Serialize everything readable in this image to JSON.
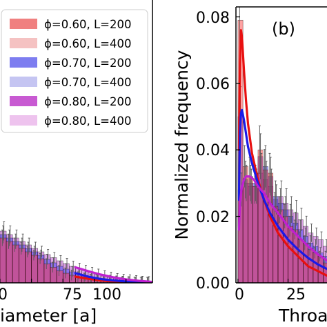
{
  "chart_data": [
    {
      "type": "bar",
      "panel": "left",
      "xlabel": "Pore diameter [a]",
      "xlabel_visible": "iameter [a]",
      "ylabel": "",
      "xlim": [
        -12,
        121
      ],
      "ylim": [
        0,
        0.08
      ],
      "xticks": [
        0,
        25,
        50,
        75,
        100
      ],
      "xticklabels_visible": [
        "0",
        "75",
        "100"
      ],
      "legend": {
        "placement": "upper-left",
        "entries": [
          {
            "label": "ϕ=0.60, L=200",
            "color": "#f08080"
          },
          {
            "label": "ϕ=0.60, L=400",
            "color": "#f5c2c2"
          },
          {
            "label": "ϕ=0.70, L=200",
            "color": "#7d7df0"
          },
          {
            "label": "ϕ=0.70, L=400",
            "color": "#c5c5f2"
          },
          {
            "label": "ϕ=0.80, L=200",
            "color": "#c85ad2"
          },
          {
            "label": "ϕ=0.80, L=400",
            "color": "#eec3ee"
          }
        ]
      },
      "bins_x": [
        2.5,
        7.5,
        12.5,
        17.5,
        22.5,
        27.5,
        32.5,
        37.5,
        42.5,
        47.5,
        52.5,
        57.5,
        62.5,
        67.5,
        72.5,
        77.5,
        82.5,
        87.5,
        92.5,
        97.5,
        102.5,
        107.5,
        112.5,
        117.5
      ],
      "series": [
        {
          "name": "ϕ=0.60, L=200",
          "color": "#ff3030",
          "values": [
            0.013,
            0.012,
            0.011,
            0.01,
            0.009,
            0.008,
            0.007,
            0.0055,
            0.0045,
            0.0035,
            0.0028,
            0.0022,
            0.0017,
            0.0013,
            0.001,
            0.0008,
            0.0006,
            0.0004,
            0.0003,
            0.0002,
            0.0002,
            0.0001,
            0.0001,
            0.0001
          ]
        },
        {
          "name": "ϕ=0.70, L=200",
          "color": "#3030ff",
          "values": [
            0.014,
            0.013,
            0.012,
            0.011,
            0.01,
            0.009,
            0.008,
            0.0068,
            0.0058,
            0.0048,
            0.004,
            0.0032,
            0.0026,
            0.002,
            0.0016,
            0.0012,
            0.0009,
            0.0007,
            0.0005,
            0.0004,
            0.0003,
            0.0002,
            0.0002,
            0.0001
          ]
        },
        {
          "name": "ϕ=0.80, L=200",
          "color": "#b030c8",
          "values": [
            0.015,
            0.014,
            0.013,
            0.012,
            0.011,
            0.01,
            0.009,
            0.0082,
            0.0073,
            0.0064,
            0.0056,
            0.0048,
            0.0042,
            0.0036,
            0.003,
            0.0025,
            0.002,
            0.0016,
            0.0012,
            0.001,
            0.0008,
            0.0006,
            0.0004,
            0.0003
          ]
        }
      ],
      "fit_lines": [
        {
          "series": "ϕ=0.60, L=200",
          "color": "#e81010",
          "x": [
            60,
            70,
            80,
            90,
            100,
            110,
            120
          ],
          "y": [
            0.0018,
            0.0012,
            0.0007,
            0.0004,
            0.0002,
            0.0001,
            5e-05
          ]
        },
        {
          "series": "ϕ=0.70, L=200",
          "color": "#1a1ae8",
          "x": [
            60,
            70,
            80,
            90,
            100,
            110,
            120
          ],
          "y": [
            0.0028,
            0.0018,
            0.0011,
            0.0007,
            0.0004,
            0.0002,
            0.0001
          ]
        },
        {
          "series": "ϕ=0.80, L=200",
          "color": "#c020d0",
          "x": [
            60,
            70,
            80,
            90,
            100,
            110,
            120
          ],
          "y": [
            0.0045,
            0.0034,
            0.0024,
            0.0016,
            0.001,
            0.0006,
            0.0003
          ]
        }
      ],
      "grid": false
    },
    {
      "type": "bar",
      "panel": "right",
      "label": "(b)",
      "xlabel": "Throat diameter [a]",
      "xlabel_visible": "Throa",
      "ylabel": "Normalized frequency",
      "xlim": [
        -1,
        52
      ],
      "ylim": [
        0,
        0.083
      ],
      "yticks": [
        0.0,
        0.02,
        0.04,
        0.06,
        0.08
      ],
      "yticklabels": [
        "0.00",
        "0.02",
        "0.04",
        "0.06",
        "0.08"
      ],
      "xticks": [
        0,
        25
      ],
      "xticklabels": [
        "0",
        "25"
      ],
      "bins_x": [
        1.25,
        3.75,
        6.25,
        8.75,
        11.25,
        13.75,
        16.25,
        18.75,
        21.25,
        23.75,
        26.25,
        28.75,
        31.25,
        33.75,
        36.25,
        38.75,
        41.25,
        43.75,
        46.25,
        48.75
      ],
      "series": [
        {
          "name": "ϕ=0.60, L=200",
          "color": "#ff3030",
          "values": [
            0.079,
            0.035,
            0.032,
            0.029,
            0.04,
            0.034,
            0.033,
            0.023,
            0.022,
            0.02,
            0.017,
            0.016,
            0.013,
            0.012,
            0.01,
            0.009,
            0.008,
            0.006,
            0.005,
            0.004
          ]
        },
        {
          "name": "ϕ=0.70, L=200",
          "color": "#3030ff",
          "values": [
            0.05,
            0.031,
            0.03,
            0.03,
            0.038,
            0.035,
            0.032,
            0.026,
            0.024,
            0.022,
            0.02,
            0.018,
            0.016,
            0.014,
            0.012,
            0.011,
            0.009,
            0.008,
            0.007,
            0.006
          ]
        },
        {
          "name": "ϕ=0.80, L=200",
          "color": "#b030c8",
          "values": [
            0.028,
            0.03,
            0.029,
            0.029,
            0.033,
            0.031,
            0.029,
            0.025,
            0.026,
            0.024,
            0.022,
            0.021,
            0.019,
            0.017,
            0.015,
            0.014,
            0.013,
            0.011,
            0.01,
            0.009
          ]
        }
      ],
      "fit_lines": [
        {
          "series": "ϕ=0.60, L=200",
          "color": "#e81010",
          "x": [
            0.5,
            1,
            1.5,
            2,
            3,
            4,
            5,
            7,
            10,
            13,
            16,
            20,
            25,
            30,
            35,
            40,
            45,
            50
          ],
          "y": [
            0.04,
            0.066,
            0.076,
            0.074,
            0.064,
            0.055,
            0.048,
            0.039,
            0.031,
            0.025,
            0.02,
            0.015,
            0.011,
            0.008,
            0.005,
            0.0035,
            0.002,
            0.001
          ]
        },
        {
          "series": "ϕ=0.70, L=200",
          "color": "#1a1ae8",
          "x": [
            0.5,
            1,
            1.5,
            2,
            3,
            4,
            5,
            7,
            10,
            13,
            16,
            20,
            25,
            30,
            35,
            40,
            45,
            50
          ],
          "y": [
            0.025,
            0.045,
            0.051,
            0.052,
            0.049,
            0.045,
            0.041,
            0.036,
            0.03,
            0.025,
            0.021,
            0.017,
            0.013,
            0.01,
            0.0075,
            0.0055,
            0.004,
            0.0028
          ]
        },
        {
          "series": "ϕ=0.80, L=200",
          "color": "#c020d0",
          "x": [
            0.5,
            1,
            2,
            3,
            4,
            6,
            8,
            10,
            13,
            16,
            20,
            25,
            30,
            35,
            40,
            45,
            50
          ],
          "y": [
            0.016,
            0.024,
            0.029,
            0.031,
            0.032,
            0.032,
            0.031,
            0.029,
            0.027,
            0.024,
            0.021,
            0.017,
            0.014,
            0.011,
            0.0085,
            0.0065,
            0.005
          ]
        }
      ],
      "grid": false
    }
  ]
}
